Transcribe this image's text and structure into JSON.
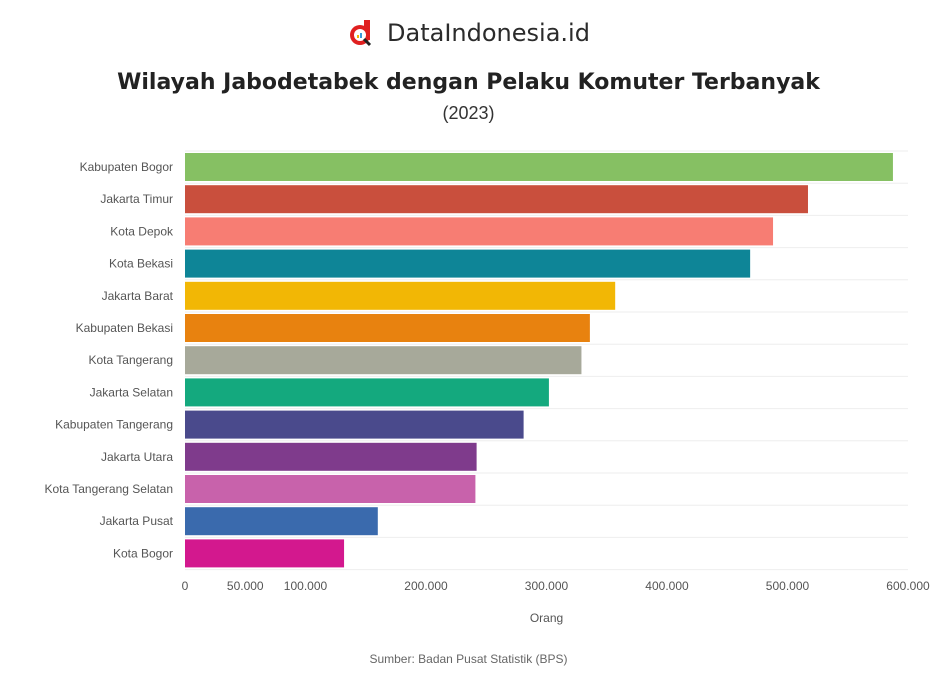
{
  "brand": {
    "name": "DataIndonesia.id",
    "logo_color": "#e02020"
  },
  "chart_data": {
    "type": "bar",
    "orientation": "horizontal",
    "title": "Wilayah Jabodetabek dengan Pelaku Komuter Terbanyak",
    "subtitle": "(2023)",
    "xlabel": "Orang",
    "ylabel": "",
    "xlim": [
      0,
      600000
    ],
    "xticks": [
      0,
      50000,
      100000,
      200000,
      300000,
      400000,
      500000,
      600000
    ],
    "xtick_labels": [
      "0",
      "50.000",
      "100.000",
      "200.000",
      "300.000",
      "400.000",
      "500.000",
      "600.000"
    ],
    "categories": [
      "Kabupaten Bogor",
      "Jakarta Timur",
      "Kota Depok",
      "Kota Bekasi",
      "Jakarta Barat",
      "Kabupaten Bekasi",
      "Kota Tangerang",
      "Jakarta Selatan",
      "Kabupaten Tangerang",
      "Jakarta Utara",
      "Kota Tangerang Selatan",
      "Jakarta Pusat",
      "Kota Bogor"
    ],
    "values": [
      587500,
      517000,
      488000,
      469000,
      357000,
      336000,
      329000,
      302000,
      281000,
      242000,
      241000,
      160000,
      132000
    ],
    "colors": [
      "#86c063",
      "#c94f3d",
      "#f77d73",
      "#0e8597",
      "#f2b705",
      "#e8820f",
      "#a7a99a",
      "#14a97e",
      "#4a4a8c",
      "#7f3b8c",
      "#c862ab",
      "#3a6aad",
      "#d3188e"
    ],
    "grid": true,
    "legend": "none"
  },
  "source": "Sumber: Badan Pusat Statistik (BPS)"
}
